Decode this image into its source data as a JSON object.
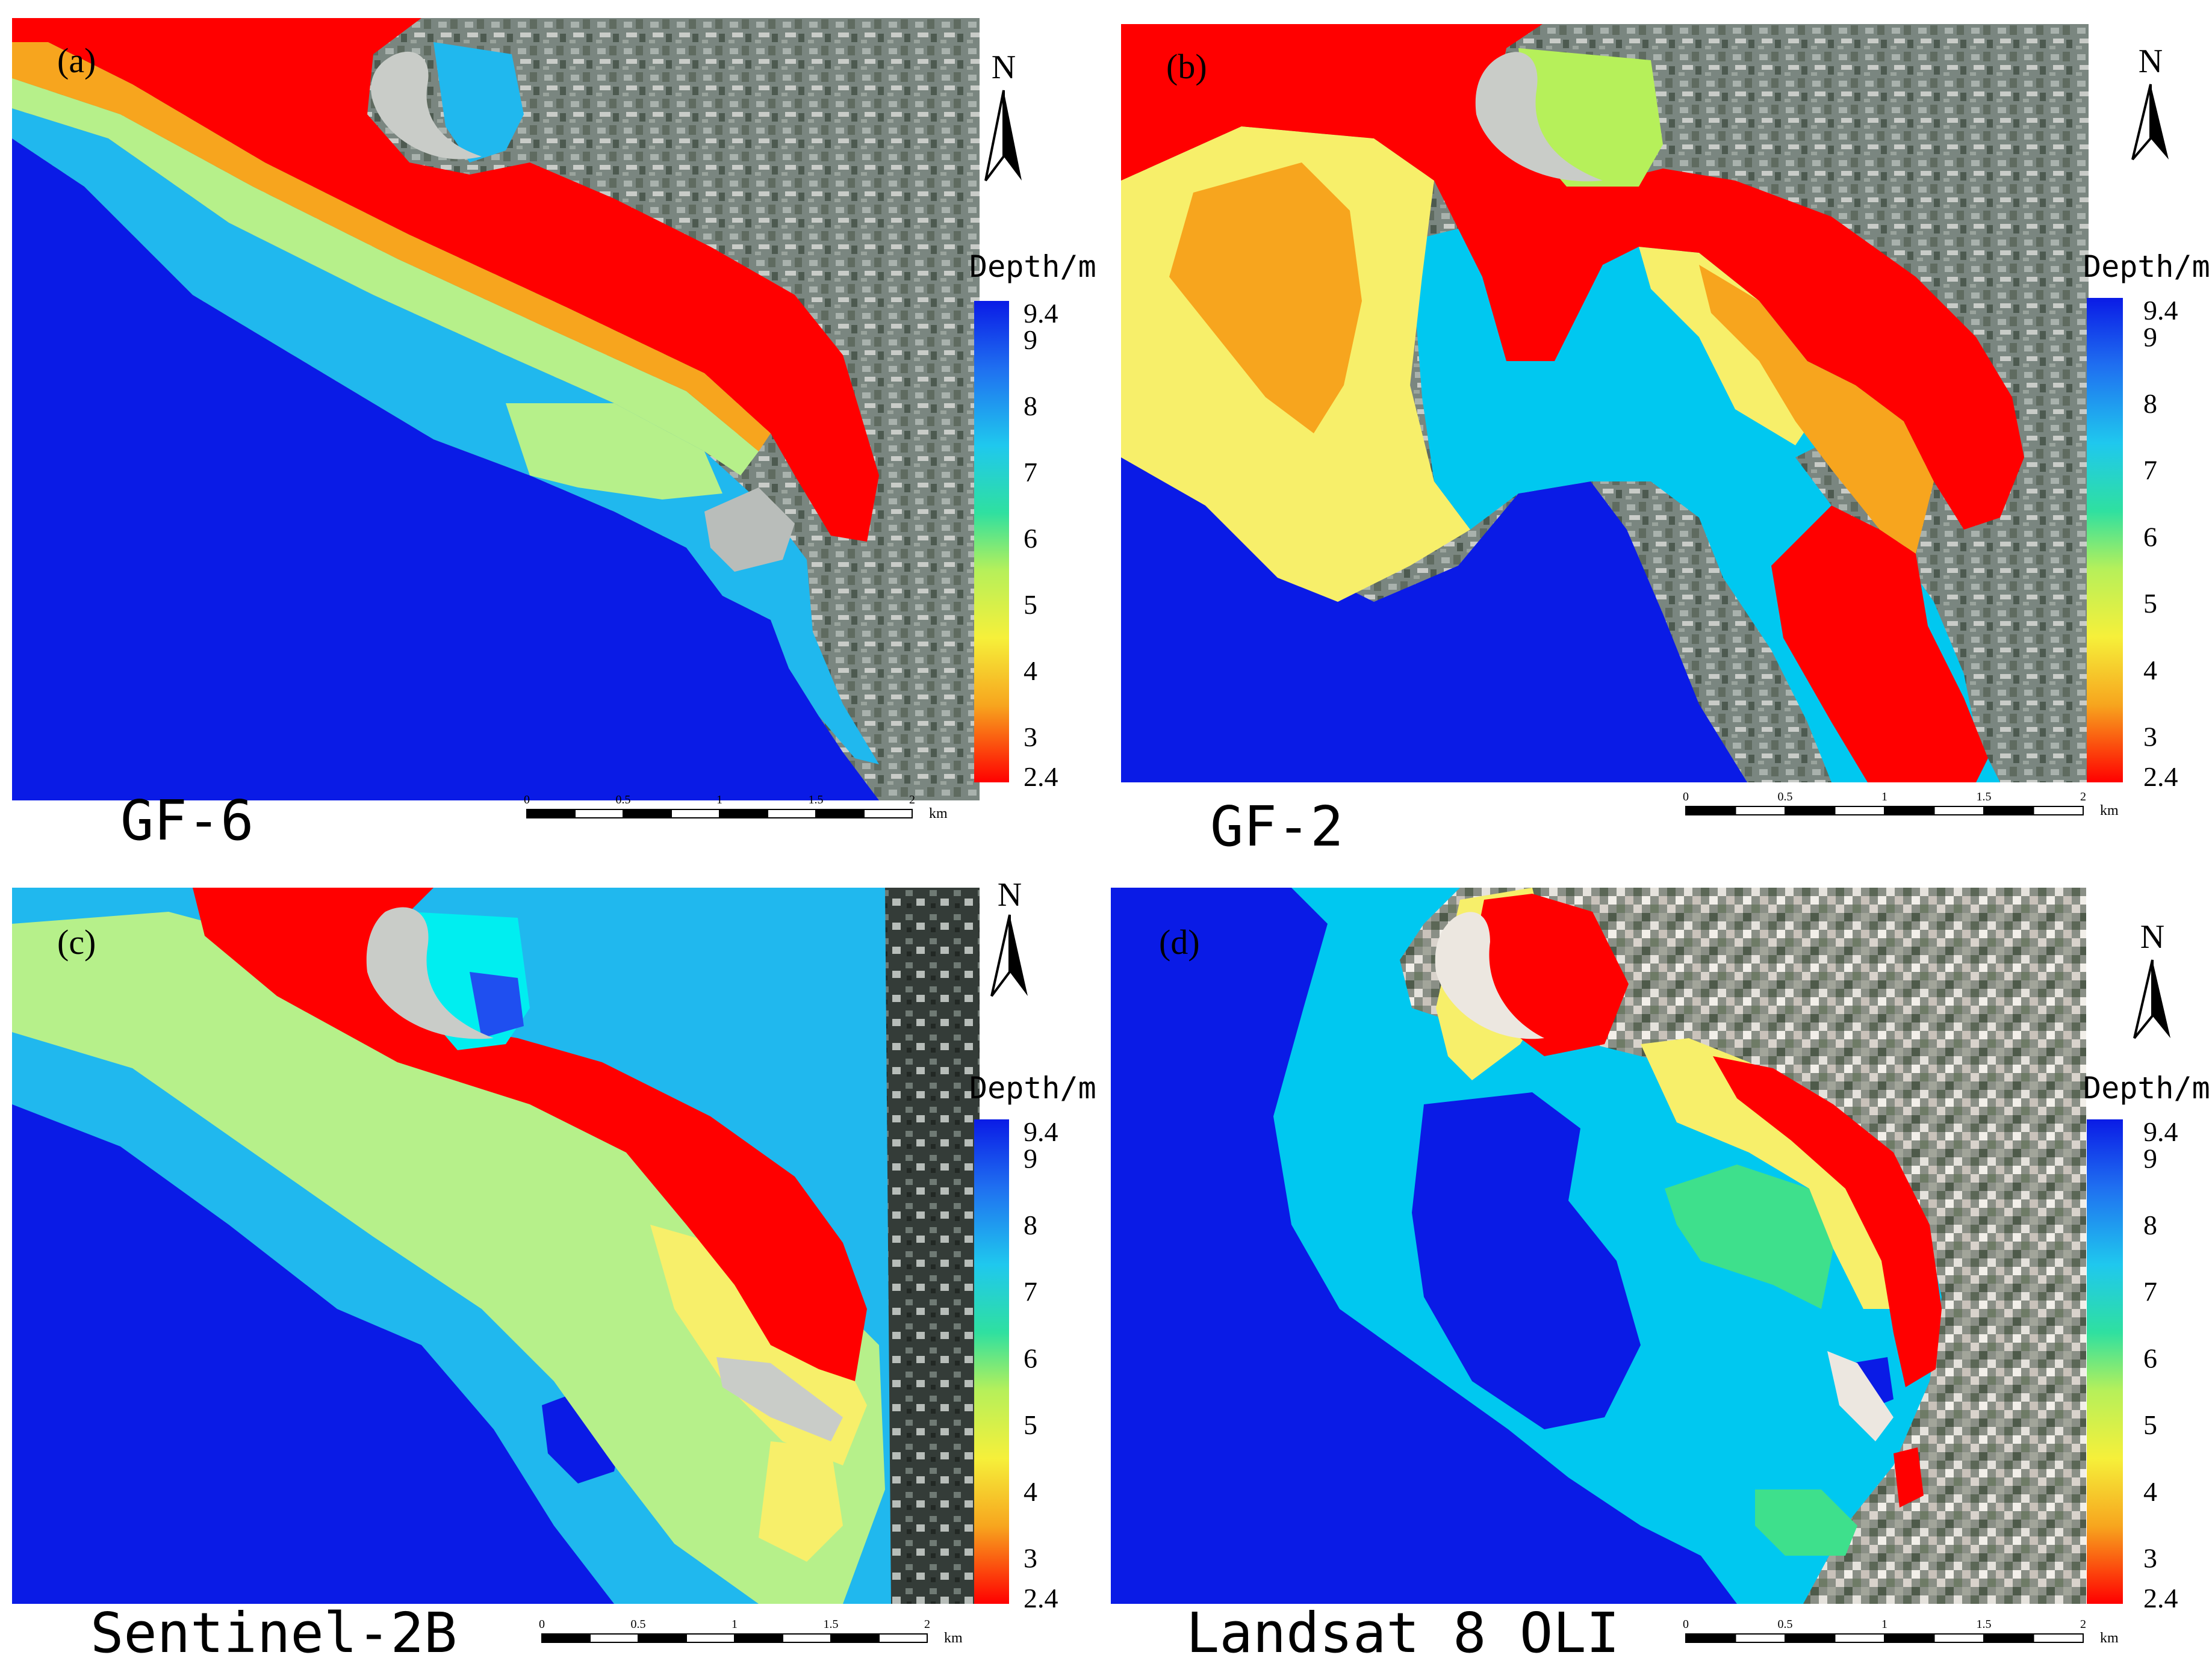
{
  "panels": [
    {
      "tag": "(a)",
      "sensor": "GF-6"
    },
    {
      "tag": "(b)",
      "sensor": "GF-2"
    },
    {
      "tag": "(c)",
      "sensor": "Sentinel-2B"
    },
    {
      "tag": "(d)",
      "sensor": "Landsat 8 OLI"
    }
  ],
  "legend": {
    "title": "Depth/m",
    "ticks": [
      "9.4",
      "9",
      "8",
      "7",
      "6",
      "5",
      "4",
      "3",
      "2.4"
    ],
    "colors": [
      "#0a1be6",
      "#1f6ff0",
      "#1fc8ee",
      "#2fe0a0",
      "#b6f05a",
      "#f6f03a",
      "#f7a51e",
      "#f4501a",
      "#ff0000"
    ]
  },
  "north_arrow": {
    "label": "N"
  },
  "scale_bar": {
    "ticks": [
      "0",
      "0.5",
      "1",
      "1.5",
      "2"
    ],
    "unit": "km"
  },
  "colors": {
    "deep": "#0a1be6",
    "mid_blue": "#20b8ee",
    "cyan": "#00c8f0",
    "light_green": "#b6f08a",
    "green": "#3ee08c",
    "yellow": "#f7ef6a",
    "orange": "#f7a51e",
    "red": "#ff0000",
    "land": "#7f8b86"
  }
}
